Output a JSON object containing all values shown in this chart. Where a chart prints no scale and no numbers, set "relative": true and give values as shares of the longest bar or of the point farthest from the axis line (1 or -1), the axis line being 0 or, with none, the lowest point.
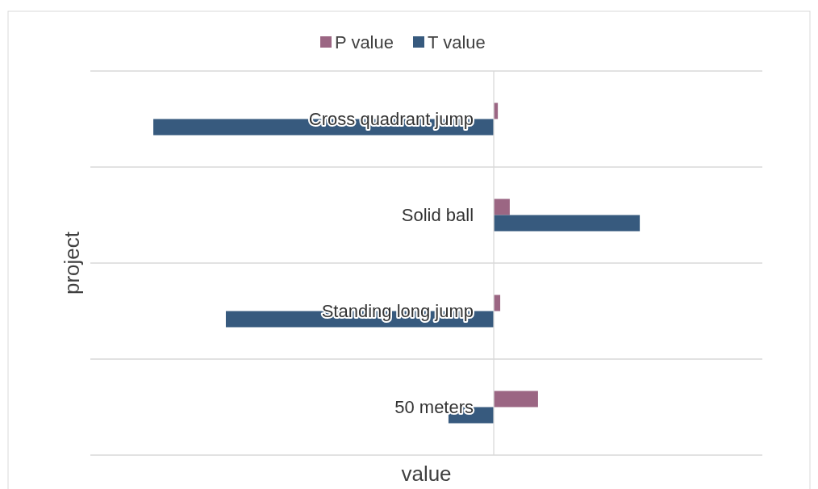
{
  "chart_data": {
    "type": "bar",
    "orientation": "horizontal",
    "relative": true,
    "xlabel": "value",
    "ylabel": "project",
    "categories": [
      "Cross quadrant jump",
      "Solid ball",
      "Standing long jump",
      "50 meters"
    ],
    "series": [
      {
        "name": "P value",
        "color": "#9b6683",
        "values": [
          0.012,
          0.047,
          0.019,
          0.13
        ]
      },
      {
        "name": "T value",
        "color": "#375a7e",
        "values": [
          -1,
          0.429,
          -0.787,
          -0.133
        ]
      }
    ],
    "grid": "y",
    "legend": "top"
  }
}
